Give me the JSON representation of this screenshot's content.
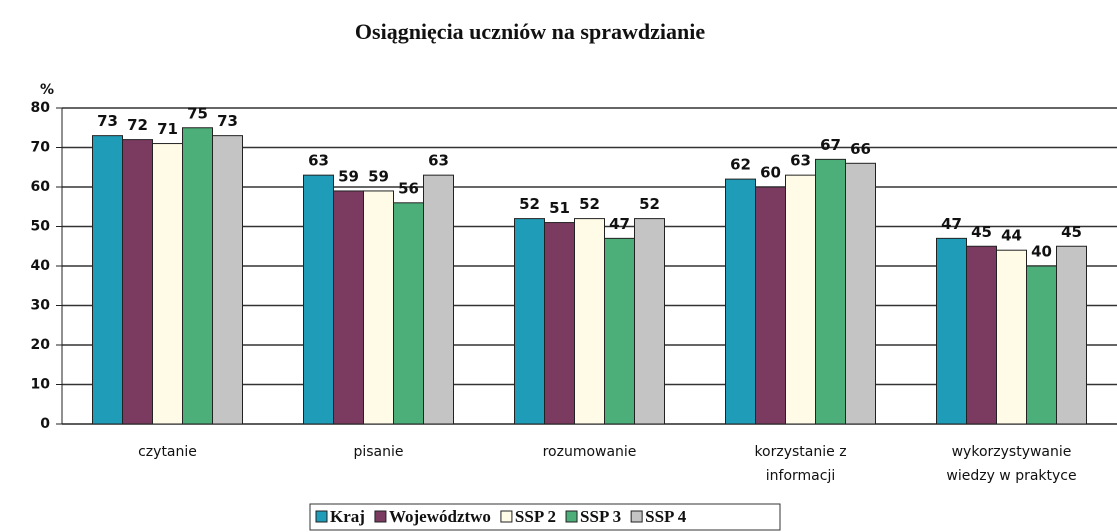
{
  "chart_data": {
    "type": "bar",
    "title": "Osiągnięcia uczniów na sprawdzianie",
    "y_label": "%",
    "categories": [
      "czytanie",
      "pisanie",
      "rozumowanie",
      "korzystanie z informacji",
      "wykorzystywanie wiedzy w praktyce"
    ],
    "series": [
      {
        "name": "Kraj",
        "color": "#1f9cb8",
        "values": [
          73,
          63,
          52,
          62,
          47
        ]
      },
      {
        "name": "Województwo",
        "color": "#7b3a60",
        "values": [
          72,
          59,
          51,
          60,
          45
        ]
      },
      {
        "name": "SSP 2",
        "color": "#fffbe6",
        "values": [
          71,
          59,
          52,
          63,
          44
        ]
      },
      {
        "name": "SSP 3",
        "color": "#4cae78",
        "values": [
          75,
          56,
          47,
          67,
          40
        ]
      },
      {
        "name": "SSP 4",
        "color": "#c4c4c4",
        "values": [
          73,
          63,
          52,
          66,
          45
        ]
      }
    ],
    "ylim": [
      0,
      80
    ],
    "yticks": [
      0,
      10,
      20,
      30,
      40,
      50,
      60,
      70,
      80
    ],
    "grid": true,
    "legend": "bottom"
  }
}
